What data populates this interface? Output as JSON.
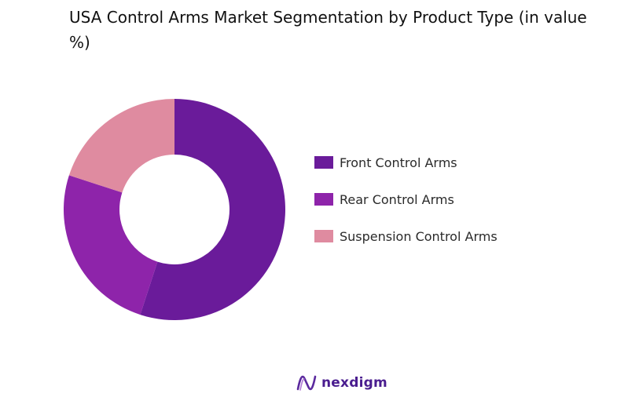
{
  "chart_data": {
    "type": "pie",
    "subtype": "donut",
    "title": "USA Control Arms Market Segmentation by Product Type (in value %)",
    "categories": [
      "Front Control Arms",
      "Rear Control Arms",
      "Suspension Control Arms"
    ],
    "values": [
      55,
      25,
      20
    ],
    "colors": [
      "#6a1b9a",
      "#8e24aa",
      "#df8ba0"
    ],
    "legend_position": "right"
  },
  "brand": {
    "name": "nexdigm",
    "color": "#4a1d8f"
  }
}
